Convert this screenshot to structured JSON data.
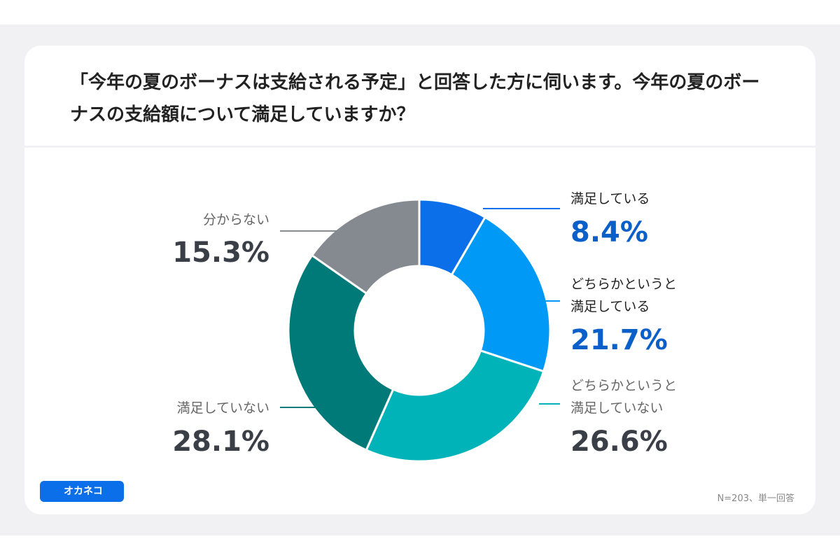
{
  "chart_data": {
    "type": "pie",
    "donut": true,
    "title": "「今年の夏のボーナスは支給される予定」と回答した方に伺います。今年の夏のボーナスの支給額について満足していますか？",
    "categories": [
      "満足している",
      "どちらかというと\n満足している",
      "どちらかというと\n満足していない",
      "満足していない",
      "分からない"
    ],
    "values": [
      8.4,
      21.7,
      26.6,
      28.1,
      15.3
    ],
    "value_labels": [
      "8.4%",
      "21.7%",
      "26.6%",
      "28.1%",
      "15.3%"
    ],
    "colors": [
      "#0a6fe8",
      "#0099f5",
      "#00b3b8",
      "#007a78",
      "#858a91"
    ],
    "note": "N=203、単一回答",
    "logo": "オカネコ"
  }
}
